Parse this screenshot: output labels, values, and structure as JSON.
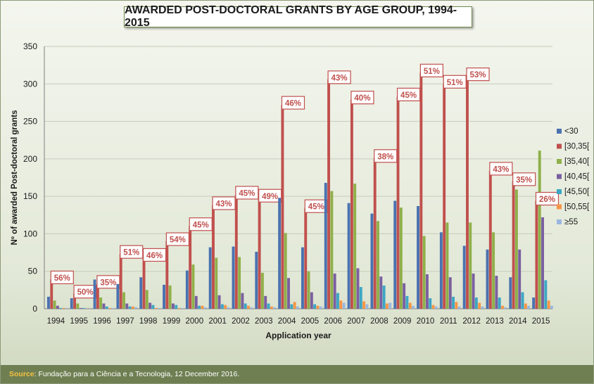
{
  "source": {
    "label": "Source",
    "text": ": Fundação para a Ciência e a Tecnologia, 12 December 2016."
  },
  "chart_data": {
    "type": "bar",
    "title": "AWARDED POST-DOCTORAL GRANTS BY AGE GROUP, 1994-2015",
    "xlabel": "Application year",
    "ylabel": "Nº of awarded Post-doctoral grants",
    "ylim": [
      0,
      350
    ],
    "yticks": [
      0,
      50,
      100,
      150,
      200,
      250,
      300,
      350
    ],
    "grid": true,
    "legend_position": "right",
    "categories": [
      "1994",
      "1995",
      "1996",
      "1997",
      "1998",
      "1999",
      "2000",
      "2001",
      "2002",
      "2003",
      "2004",
      "2005",
      "2006",
      "2007",
      "2008",
      "2009",
      "2010",
      "2011",
      "2012",
      "2013",
      "2014",
      "2015"
    ],
    "series": [
      {
        "name": "<30",
        "color": "#4a72b0",
        "values": [
          16,
          14,
          39,
          33,
          42,
          32,
          51,
          82,
          83,
          76,
          148,
          82,
          168,
          141,
          127,
          144,
          137,
          102,
          84,
          79,
          42,
          15
        ]
      },
      {
        "name": "[30,35[",
        "color": "#c0504d",
        "values": [
          39,
          20,
          33,
          73,
          69,
          90,
          110,
          138,
          152,
          148,
          272,
          134,
          306,
          279,
          201,
          283,
          315,
          300,
          310,
          184,
          170,
          144
        ]
      },
      {
        "name": "[35,40[",
        "color": "#8fb04a",
        "values": [
          11,
          7,
          15,
          22,
          25,
          31,
          59,
          68,
          69,
          48,
          101,
          50,
          157,
          167,
          117,
          135,
          97,
          115,
          115,
          102,
          159,
          211
        ]
      },
      {
        "name": "[40,45[",
        "color": "#7a5fa0",
        "values": [
          4,
          1,
          7,
          7,
          8,
          7,
          17,
          18,
          21,
          17,
          41,
          22,
          47,
          54,
          43,
          34,
          46,
          42,
          47,
          44,
          79,
          122
        ]
      },
      {
        "name": "[45,50[",
        "color": "#3ca7c4",
        "values": [
          1,
          1,
          3,
          3,
          5,
          5,
          4,
          6,
          7,
          7,
          6,
          6,
          21,
          29,
          31,
          17,
          14,
          16,
          15,
          15,
          22,
          38
        ]
      },
      {
        "name": "[50,55[",
        "color": "#f79646",
        "values": [
          1,
          0,
          1,
          3,
          1,
          1,
          4,
          5,
          4,
          3,
          9,
          4,
          11,
          10,
          7,
          8,
          5,
          9,
          8,
          4,
          7,
          11
        ]
      },
      {
        "name": "≥55",
        "color": "#9bb7e0",
        "values": [
          1,
          0,
          1,
          2,
          1,
          1,
          2,
          2,
          2,
          2,
          3,
          3,
          8,
          6,
          8,
          4,
          3,
          3,
          3,
          2,
          4,
          4
        ]
      }
    ],
    "annotations": [
      "56%",
      "50%",
      "35%",
      "51%",
      "46%",
      "54%",
      "45%",
      "43%",
      "45%",
      "49%",
      "46%",
      "45%",
      "43%",
      "40%",
      "38%",
      "45%",
      "51%",
      "51%",
      "53%",
      "43%",
      "35%",
      "26%"
    ],
    "annotation_color": "#c0504d"
  }
}
